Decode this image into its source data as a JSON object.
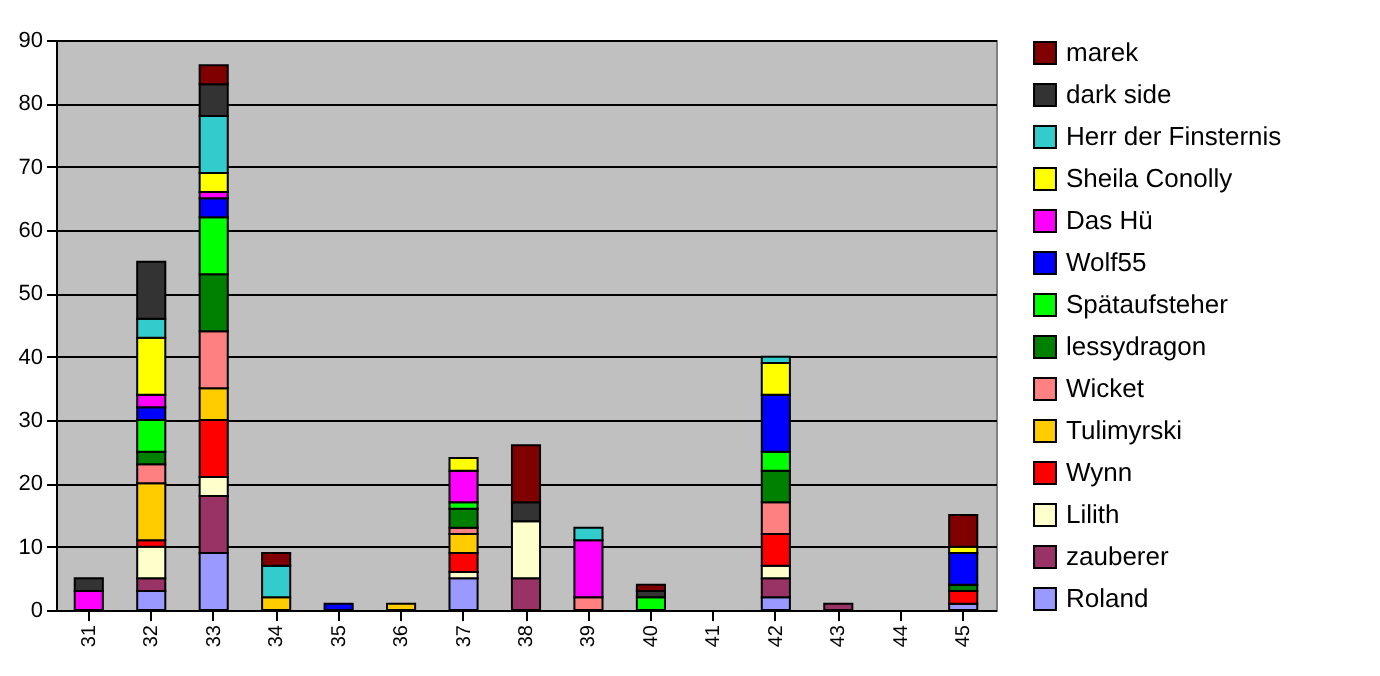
{
  "chart_data": {
    "type": "bar",
    "stacked": true,
    "categories": [
      "31",
      "32",
      "33",
      "34",
      "35",
      "36",
      "37",
      "38",
      "39",
      "40",
      "41",
      "42",
      "43",
      "44",
      "45"
    ],
    "ylim": [
      0,
      90
    ],
    "yticks": [
      0,
      10,
      20,
      30,
      40,
      50,
      60,
      70,
      80,
      90
    ],
    "grid": "y",
    "legend": "right",
    "series": [
      {
        "name": "Roland",
        "color": "#9999ff",
        "values": [
          null,
          3,
          9,
          null,
          null,
          null,
          5,
          null,
          null,
          null,
          null,
          2,
          null,
          null,
          1
        ]
      },
      {
        "name": "zauberer",
        "color": "#993366",
        "values": [
          null,
          2,
          9,
          null,
          null,
          null,
          null,
          5,
          null,
          null,
          null,
          3,
          1,
          null,
          null
        ]
      },
      {
        "name": "Lilith",
        "color": "#ffffcc",
        "values": [
          null,
          5,
          3,
          null,
          null,
          null,
          1,
          9,
          null,
          null,
          null,
          2,
          null,
          null,
          null
        ]
      },
      {
        "name": "Wynn",
        "color": "#ff0000",
        "values": [
          null,
          1,
          9,
          null,
          null,
          null,
          3,
          null,
          null,
          null,
          null,
          5,
          null,
          null,
          2
        ]
      },
      {
        "name": "Tulimyrski",
        "color": "#ffcc00",
        "values": [
          null,
          9,
          5,
          2,
          null,
          1,
          3,
          null,
          null,
          null,
          null,
          null,
          null,
          null,
          null
        ]
      },
      {
        "name": "Wicket",
        "color": "#ff8080",
        "values": [
          null,
          3,
          9,
          null,
          null,
          null,
          1,
          null,
          2,
          null,
          null,
          5,
          null,
          null,
          null
        ]
      },
      {
        "name": "lessydragon",
        "color": "#008000",
        "values": [
          null,
          2,
          9,
          null,
          null,
          null,
          3,
          null,
          null,
          null,
          null,
          5,
          null,
          null,
          1
        ]
      },
      {
        "name": "Spätaufsteher",
        "color": "#00ff00",
        "values": [
          null,
          5,
          9,
          null,
          null,
          null,
          1,
          null,
          null,
          2,
          null,
          3,
          null,
          null,
          null
        ]
      },
      {
        "name": "Wolf55",
        "color": "#0000ff",
        "values": [
          null,
          2,
          3,
          null,
          1,
          null,
          null,
          null,
          null,
          null,
          null,
          9,
          null,
          null,
          5
        ]
      },
      {
        "name": "Das Hü",
        "color": "#ff00ff",
        "values": [
          3,
          2,
          1,
          null,
          null,
          null,
          5,
          null,
          9,
          null,
          null,
          null,
          null,
          null,
          null
        ]
      },
      {
        "name": "Sheila Conolly",
        "color": "#ffff00",
        "values": [
          null,
          9,
          3,
          null,
          null,
          null,
          2,
          null,
          null,
          null,
          null,
          5,
          null,
          null,
          1
        ]
      },
      {
        "name": "Herr der Finsternis",
        "color": "#33cccc",
        "values": [
          null,
          3,
          9,
          5,
          null,
          null,
          null,
          null,
          2,
          null,
          null,
          1,
          null,
          null,
          null
        ]
      },
      {
        "name": "dark side",
        "color": "#333333",
        "values": [
          2,
          9,
          5,
          null,
          null,
          null,
          null,
          3,
          null,
          1,
          null,
          null,
          null,
          null,
          null
        ]
      },
      {
        "name": "marek",
        "color": "#800000",
        "values": [
          null,
          null,
          3,
          2,
          null,
          null,
          null,
          9,
          null,
          1,
          null,
          null,
          null,
          null,
          5
        ]
      }
    ]
  }
}
